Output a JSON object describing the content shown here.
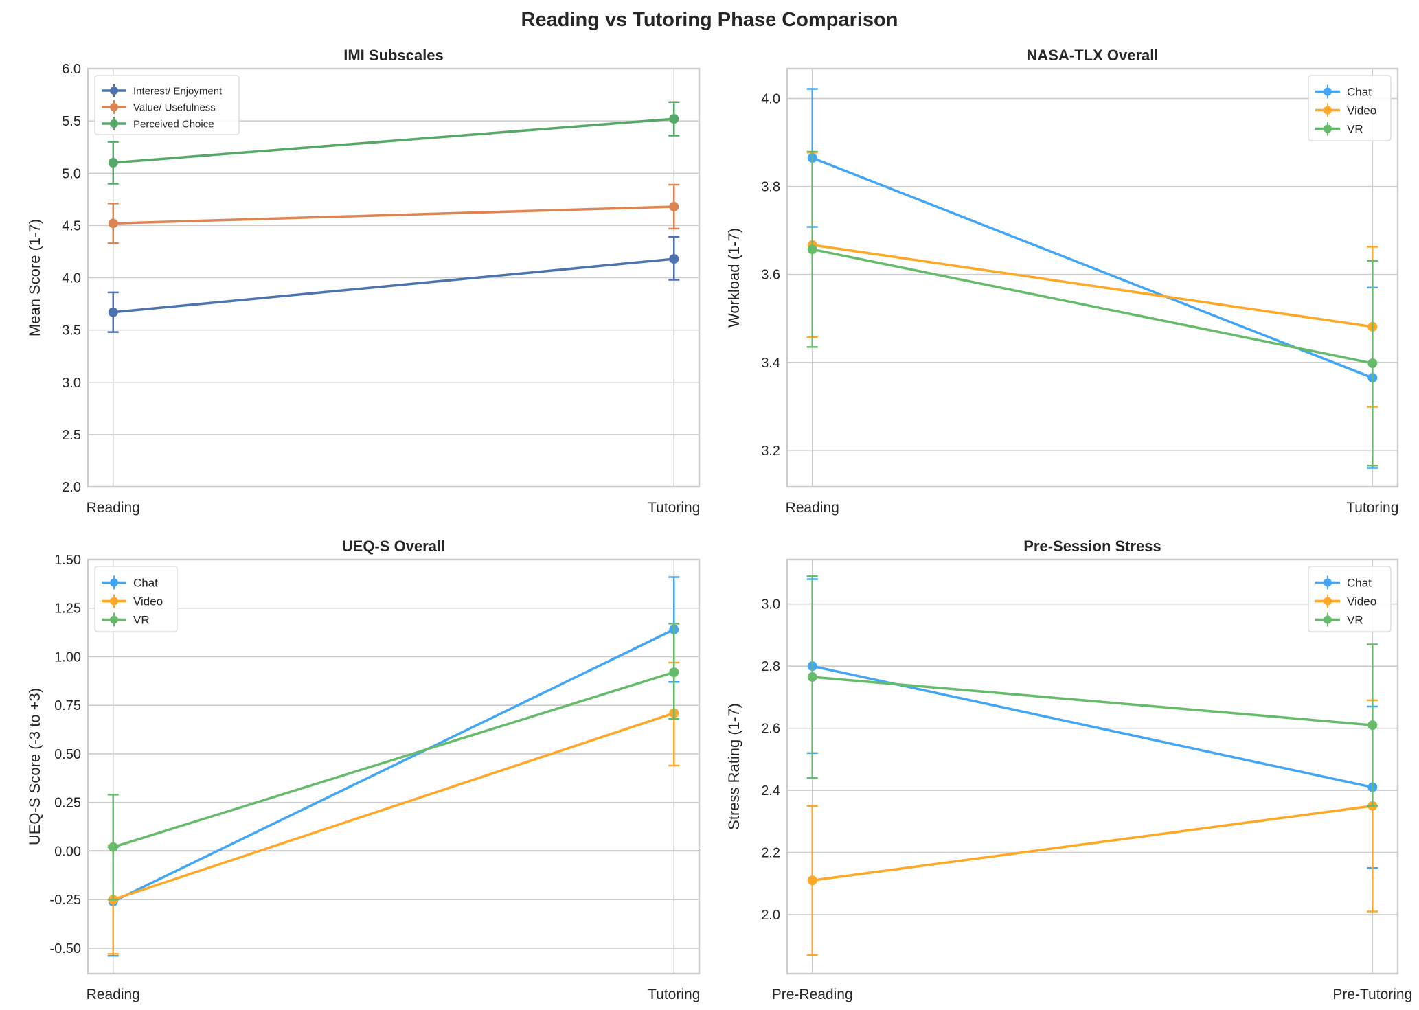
{
  "title": "Reading vs Tutoring Phase Comparison",
  "chart_data": [
    {
      "type": "line",
      "title": "IMI Subscales",
      "ylabel": "Mean Score (1-7)",
      "categories": [
        "Reading",
        "Tutoring"
      ],
      "ylim": [
        2.0,
        6.0
      ],
      "yticks": [
        "2.0",
        "2.5",
        "3.0",
        "3.5",
        "4.0",
        "4.5",
        "5.0",
        "5.5",
        "6.0"
      ],
      "grid": true,
      "legend": "top-left",
      "zero_line": false,
      "series": [
        {
          "name": "Interest/ Enjoyment",
          "color": "#4c72b0",
          "values": [
            3.67,
            4.18
          ],
          "lower": [
            3.48,
            3.98
          ],
          "upper": [
            3.86,
            4.39
          ]
        },
        {
          "name": "Value/ Usefulness",
          "color": "#dd8452",
          "values": [
            4.52,
            4.68
          ],
          "lower": [
            4.33,
            4.47
          ],
          "upper": [
            4.71,
            4.89
          ]
        },
        {
          "name": "Perceived Choice",
          "color": "#55a868",
          "values": [
            5.1,
            5.52
          ],
          "lower": [
            4.9,
            5.36
          ],
          "upper": [
            5.3,
            5.68
          ]
        }
      ]
    },
    {
      "type": "line",
      "title": "NASA-TLX Overall",
      "ylabel": "Workload (1-7)",
      "categories": [
        "Reading",
        "Tutoring"
      ],
      "ylim": [
        3.117,
        4.068
      ],
      "yticks": [
        "3.2",
        "3.4",
        "3.6",
        "3.8",
        "4.0"
      ],
      "grid": true,
      "legend": "top-right",
      "zero_line": false,
      "series": [
        {
          "name": "Chat",
          "color": "#42a5f5",
          "values": [
            3.865,
            3.365
          ],
          "lower": [
            3.708,
            3.16
          ],
          "upper": [
            4.022,
            3.57
          ]
        },
        {
          "name": "Video",
          "color": "#ffa726",
          "values": [
            3.667,
            3.481
          ],
          "lower": [
            3.457,
            3.299
          ],
          "upper": [
            3.877,
            3.663
          ]
        },
        {
          "name": "VR",
          "color": "#66bb6a",
          "values": [
            3.657,
            3.398
          ],
          "lower": [
            3.435,
            3.165
          ],
          "upper": [
            3.879,
            3.631
          ]
        }
      ]
    },
    {
      "type": "line",
      "title": "UEQ-S Overall",
      "ylabel": "UEQ-S Score (-3 to +3)",
      "categories": [
        "Reading",
        "Tutoring"
      ],
      "ylim": [
        -0.631,
        1.5
      ],
      "yticks": [
        "-0.50",
        "-0.25",
        "0.00",
        "0.25",
        "0.50",
        "0.75",
        "1.00",
        "1.25",
        "1.50"
      ],
      "grid": true,
      "legend": "top-left",
      "zero_line": true,
      "series": [
        {
          "name": "Chat",
          "color": "#42a5f5",
          "values": [
            -0.26,
            1.14
          ],
          "lower": [
            -0.54,
            0.87
          ],
          "upper": [
            0.02,
            1.41
          ]
        },
        {
          "name": "Video",
          "color": "#ffa726",
          "values": [
            -0.25,
            0.71
          ],
          "lower": [
            -0.53,
            0.44
          ],
          "upper": [
            0.03,
            0.97
          ]
        },
        {
          "name": "VR",
          "color": "#66bb6a",
          "values": [
            0.02,
            0.92
          ],
          "lower": [
            -0.25,
            0.68
          ],
          "upper": [
            0.29,
            1.17
          ]
        }
      ]
    },
    {
      "type": "line",
      "title": "Pre-Session Stress",
      "ylabel": "Stress Rating (1-7)",
      "categories": [
        "Pre-Reading",
        "Pre-Tutoring"
      ],
      "ylim": [
        1.81,
        3.143
      ],
      "yticks": [
        "2.0",
        "2.2",
        "2.4",
        "2.6",
        "2.8",
        "3.0"
      ],
      "grid": true,
      "legend": "top-right",
      "zero_line": false,
      "series": [
        {
          "name": "Chat",
          "color": "#42a5f5",
          "values": [
            2.8,
            2.41
          ],
          "lower": [
            2.52,
            2.15
          ],
          "upper": [
            3.08,
            2.67
          ]
        },
        {
          "name": "Video",
          "color": "#ffa726",
          "values": [
            2.11,
            2.35
          ],
          "lower": [
            1.87,
            2.01
          ],
          "upper": [
            2.35,
            2.69
          ]
        },
        {
          "name": "VR",
          "color": "#66bb6a",
          "values": [
            2.765,
            2.61
          ],
          "lower": [
            2.44,
            2.35
          ],
          "upper": [
            3.09,
            2.87
          ]
        }
      ]
    }
  ]
}
